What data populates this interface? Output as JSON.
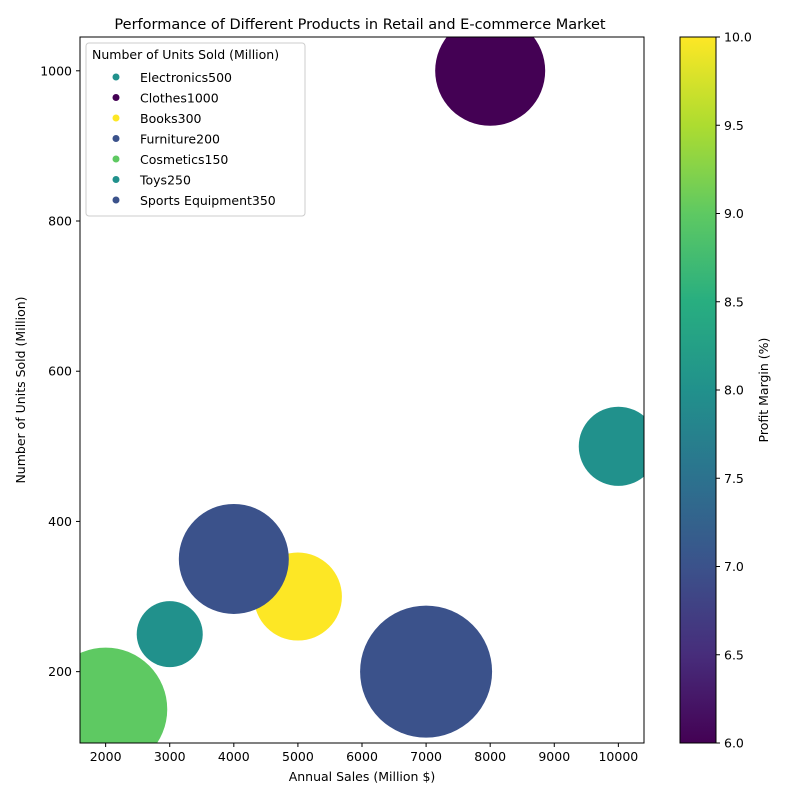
{
  "chart_data": {
    "type": "scatter",
    "title": "Performance of Different Products in Retail and E-commerce Market",
    "xlabel": "Annual Sales (Million $)",
    "ylabel": "Number of Units Sold (Million)",
    "xlim": [
      1600,
      10400
    ],
    "ylim": [
      105,
      1045
    ],
    "xticks": [
      2000,
      3000,
      4000,
      5000,
      6000,
      7000,
      8000,
      9000,
      10000
    ],
    "yticks": [
      200,
      400,
      600,
      800,
      1000
    ],
    "legend": {
      "title": "Number of Units Sold (Million)",
      "placement": "top-left"
    },
    "colorbar": {
      "label": "Profit Margin (%)",
      "min": 6.0,
      "max": 10.0,
      "ticks": [
        "6.0",
        "6.5",
        "7.0",
        "7.5",
        "8.0",
        "8.5",
        "9.0",
        "9.5",
        "10.0"
      ],
      "colormap": "viridis"
    },
    "series": [
      {
        "name": "Electronics500",
        "x": 10000,
        "y": 500,
        "margin": 8,
        "size": 18,
        "color": "#21918c"
      },
      {
        "name": "Clothes1000",
        "x": 8000,
        "y": 1000,
        "margin": 6,
        "size": 25,
        "color": "#440154"
      },
      {
        "name": "Books300",
        "x": 5000,
        "y": 300,
        "margin": 10,
        "size": 20,
        "color": "#fde725"
      },
      {
        "name": "Furniture200",
        "x": 7000,
        "y": 200,
        "margin": 7,
        "size": 30,
        "color": "#3b528b"
      },
      {
        "name": "Cosmetics150",
        "x": 2000,
        "y": 150,
        "margin": 9,
        "size": 28,
        "color": "#5ec962"
      },
      {
        "name": "Toys250",
        "x": 3000,
        "y": 250,
        "margin": 8,
        "size": 15,
        "color": "#21918c"
      },
      {
        "name": "Sports Equipment350",
        "x": 4000,
        "y": 350,
        "margin": 7,
        "size": 25,
        "color": "#3b528b"
      }
    ]
  }
}
